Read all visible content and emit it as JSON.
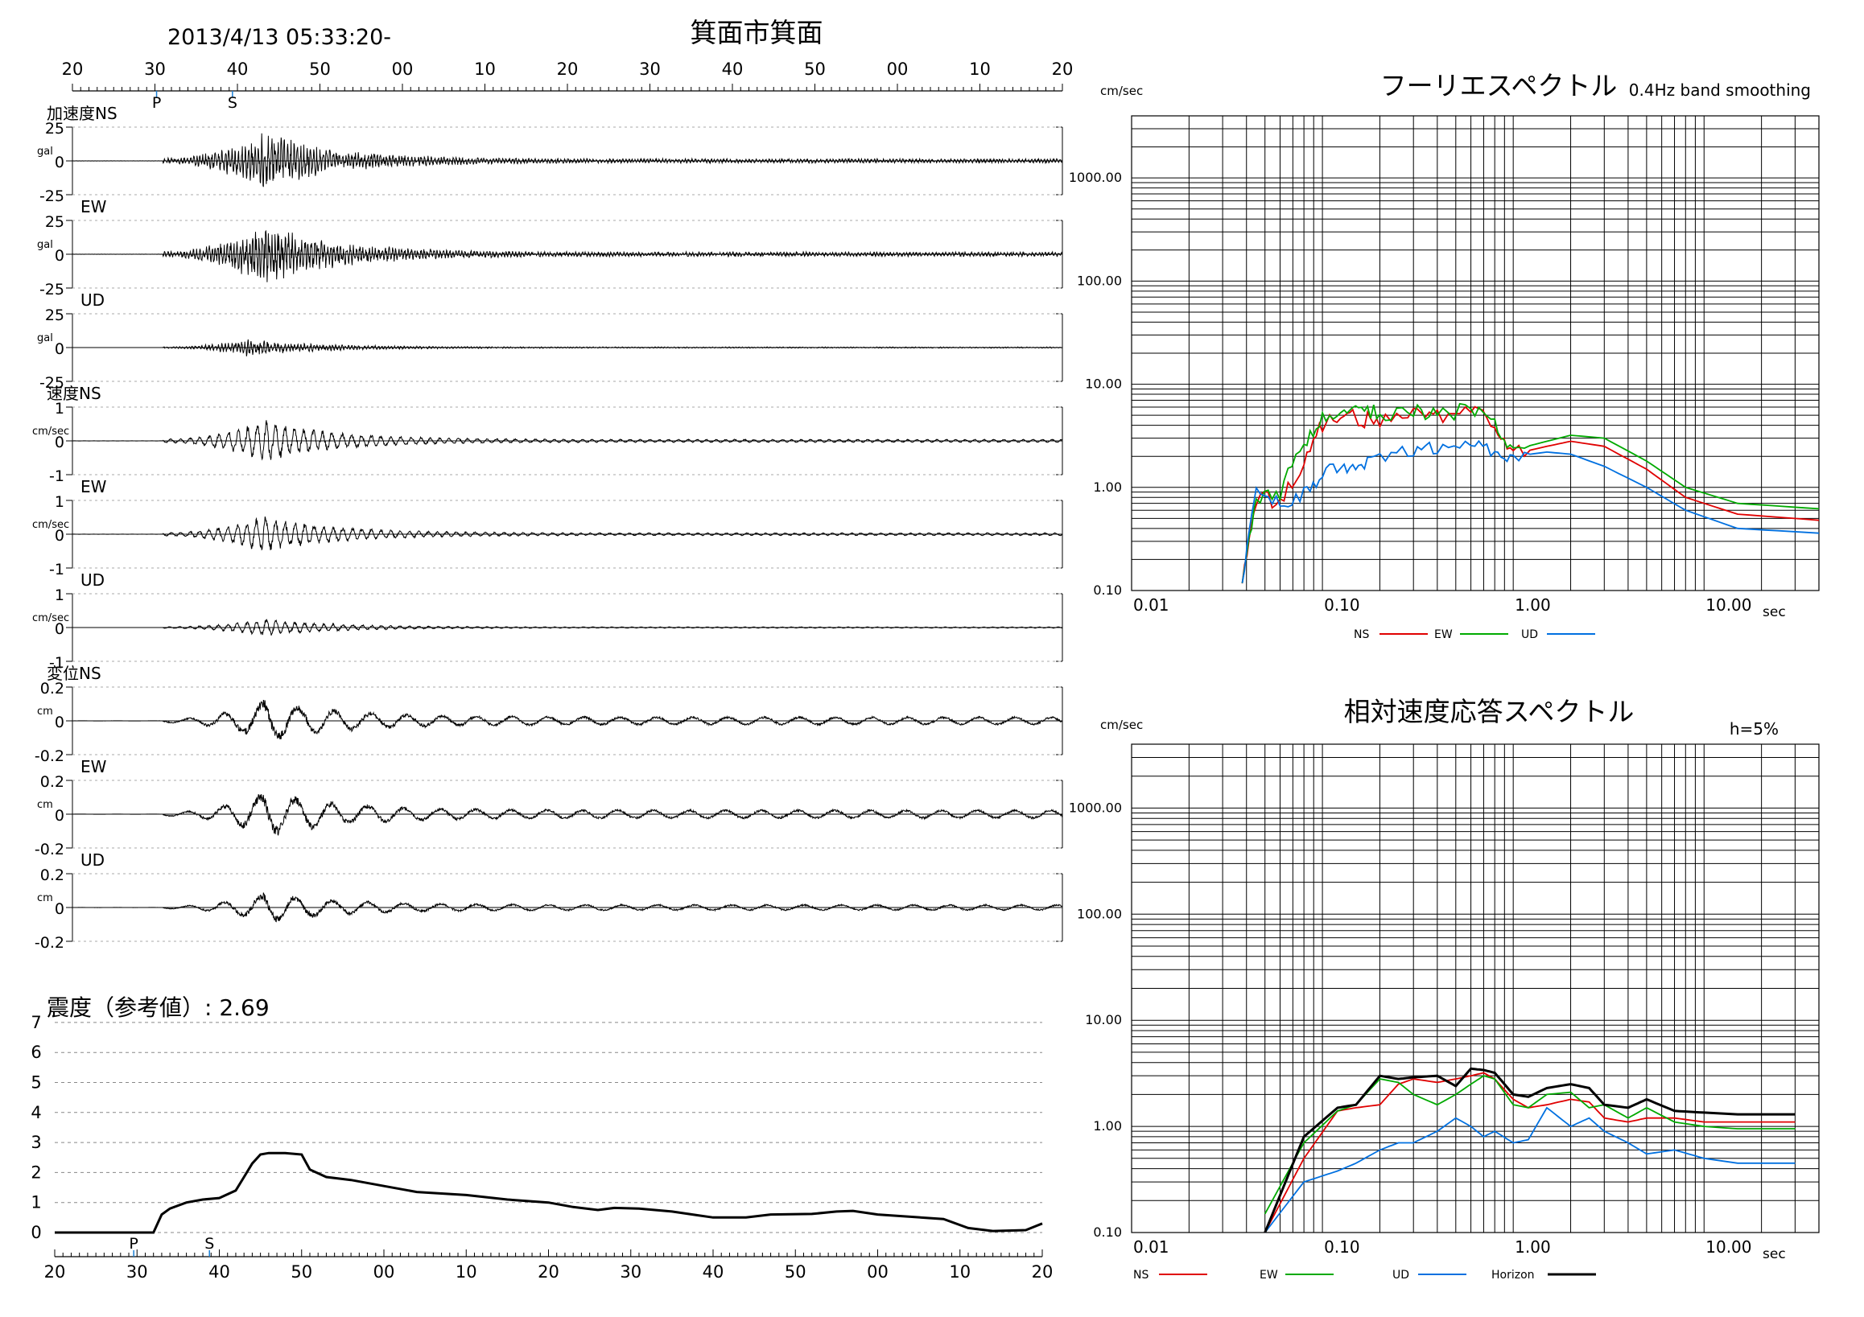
{
  "header": {
    "datetime": "2013/4/13 05:33:20-",
    "station": "箕面市箕面"
  },
  "colors": {
    "ns": "#e00000",
    "ew": "#00aa00",
    "ud": "#0070e0",
    "horizon": "#000000",
    "pick": "#1a7fd4"
  },
  "chart_data": [
    {
      "type": "line",
      "title": "箕面市箕面",
      "time_ticks": [
        "20",
        "30",
        "40",
        "50",
        "00",
        "10",
        "20",
        "30",
        "40",
        "50",
        "00",
        "10",
        "20"
      ],
      "picks": [
        "P",
        "S"
      ],
      "pick_times_s": [
        30.2,
        39.4
      ],
      "time_range_s": [
        20,
        140
      ],
      "panels": [
        {
          "group": "加速度",
          "comp": "NS",
          "label": "加速度NS",
          "unit": "gal",
          "ticks": [
            "25",
            "0",
            "-25"
          ],
          "ylim": [
            -25,
            25
          ],
          "onset": 31,
          "peak": 43,
          "amp": 0.85,
          "period": 0.4
        },
        {
          "group": "加速度",
          "comp": "EW",
          "label": "EW",
          "unit": "gal",
          "ticks": [
            "25",
            "0",
            "-25"
          ],
          "ylim": [
            -25,
            25
          ],
          "onset": 31,
          "peak": 43,
          "amp": 0.9,
          "period": 0.4
        },
        {
          "group": "加速度",
          "comp": "UD",
          "label": "UD",
          "unit": "gal",
          "ticks": [
            "25",
            "0",
            "-25"
          ],
          "ylim": [
            -25,
            25
          ],
          "onset": 31,
          "peak": 41,
          "amp": 0.25,
          "period": 0.4
        },
        {
          "group": "速度",
          "comp": "NS",
          "label": "速度NS",
          "unit": "cm/sec",
          "ticks": [
            "1",
            "0",
            "-1"
          ],
          "ylim": [
            -1,
            1
          ],
          "onset": 31,
          "peak": 43,
          "amp": 0.85,
          "period": 1.2
        },
        {
          "group": "速度",
          "comp": "EW",
          "label": "EW",
          "unit": "cm/sec",
          "ticks": [
            "1",
            "0",
            "-1"
          ],
          "ylim": [
            -1,
            1
          ],
          "onset": 31,
          "peak": 43,
          "amp": 0.75,
          "period": 1.2
        },
        {
          "group": "速度",
          "comp": "UD",
          "label": "UD",
          "unit": "cm/sec",
          "ticks": [
            "1",
            "0",
            "-1"
          ],
          "ylim": [
            -1,
            1
          ],
          "onset": 31,
          "peak": 43,
          "amp": 0.35,
          "period": 1.2
        },
        {
          "group": "変位",
          "comp": "NS",
          "label": "変位NS",
          "unit": "cm",
          "ticks": [
            "0.2",
            "0",
            "-0.2"
          ],
          "ylim": [
            -0.2,
            0.2
          ],
          "onset": 31,
          "peak": 43,
          "amp": 0.85,
          "period": 4.5
        },
        {
          "group": "変位",
          "comp": "EW",
          "label": "EW",
          "unit": "cm",
          "ticks": [
            "0.2",
            "0",
            "-0.2"
          ],
          "ylim": [
            -0.2,
            0.2
          ],
          "onset": 31,
          "peak": 43,
          "amp": 0.9,
          "period": 4.5
        },
        {
          "group": "変位",
          "comp": "UD",
          "label": "UD",
          "unit": "cm",
          "ticks": [
            "0.2",
            "0",
            "-0.2"
          ],
          "ylim": [
            -0.2,
            0.2
          ],
          "onset": 31,
          "peak": 43,
          "amp": 0.6,
          "period": 4.5
        }
      ]
    },
    {
      "type": "line",
      "title": "震度（参考値）: 2.69",
      "yticks": [
        "7",
        "6",
        "5",
        "4",
        "3",
        "2",
        "1",
        "0"
      ],
      "ylim": [
        0,
        7
      ],
      "x": [
        20,
        32,
        33,
        34,
        36,
        38,
        40,
        42,
        43,
        44,
        45,
        46,
        48,
        50,
        51,
        53,
        56,
        60,
        64,
        70,
        75,
        80,
        83,
        86,
        88,
        91,
        95,
        98,
        100,
        104,
        107,
        112,
        115,
        117,
        120,
        128,
        131,
        134,
        138,
        140
      ],
      "y": [
        0,
        0,
        0.6,
        0.8,
        1.0,
        1.1,
        1.15,
        1.4,
        1.85,
        2.3,
        2.6,
        2.65,
        2.65,
        2.6,
        2.1,
        1.85,
        1.75,
        1.55,
        1.35,
        1.25,
        1.1,
        1.0,
        0.85,
        0.75,
        0.82,
        0.8,
        0.7,
        0.58,
        0.5,
        0.5,
        0.6,
        0.62,
        0.7,
        0.72,
        0.6,
        0.45,
        0.15,
        0.05,
        0.08,
        0.3
      ]
    },
    {
      "type": "line",
      "title": "フーリエスペクトル",
      "note": "0.4Hz band smoothing",
      "ylabel": "cm/sec",
      "xlabel": "sec",
      "scale": "log-log",
      "xlim": [
        0.01,
        40
      ],
      "ylim": [
        0.1,
        4000
      ],
      "xticks": [
        "0.01",
        "0.10",
        "1.00",
        "10.00"
      ],
      "yticks": [
        "1000.00",
        "100.00",
        "10.00",
        "1.00",
        "0.10"
      ],
      "legend_labels": [
        "NS",
        "EW",
        "UD"
      ],
      "series": [
        {
          "name": "NS",
          "x": [
            0.038,
            0.045,
            0.06,
            0.08,
            0.1,
            0.13,
            0.16,
            0.2,
            0.3,
            0.4,
            0.6,
            0.8,
            1.0,
            1.5,
            2.0,
            3.0,
            5.0,
            8.0,
            15,
            40
          ],
          "y": [
            0.12,
            0.8,
            0.7,
            1.8,
            4.0,
            5.5,
            4.5,
            4.5,
            5.2,
            4.8,
            5.5,
            4.0,
            2.1,
            2.5,
            2.8,
            2.5,
            1.5,
            0.8,
            0.55,
            0.48
          ]
        },
        {
          "name": "EW",
          "x": [
            0.038,
            0.045,
            0.06,
            0.08,
            0.1,
            0.13,
            0.16,
            0.2,
            0.3,
            0.4,
            0.6,
            0.8,
            1.0,
            1.5,
            2.0,
            3.0,
            5.0,
            8.0,
            15,
            40
          ],
          "y": [
            0.12,
            0.8,
            0.9,
            2.6,
            4.8,
            5.8,
            5.5,
            5.2,
            5.8,
            5.0,
            5.8,
            4.0,
            2.3,
            2.8,
            3.2,
            3.0,
            1.8,
            1.0,
            0.7,
            0.62
          ]
        },
        {
          "name": "UD",
          "x": [
            0.038,
            0.045,
            0.06,
            0.08,
            0.1,
            0.13,
            0.16,
            0.2,
            0.3,
            0.4,
            0.6,
            0.8,
            1.0,
            1.5,
            2.0,
            3.0,
            5.0,
            8.0,
            15,
            40
          ],
          "y": [
            0.12,
            0.9,
            0.7,
            0.9,
            1.3,
            1.6,
            1.8,
            1.9,
            2.2,
            2.5,
            2.5,
            2.3,
            2.0,
            2.2,
            2.1,
            1.6,
            1.0,
            0.6,
            0.4,
            0.36
          ]
        }
      ]
    },
    {
      "type": "line",
      "title": "相対速度応答スペクトル",
      "note": "h=5%",
      "ylabel": "cm/sec",
      "xlabel": "sec",
      "scale": "log-log",
      "xlim": [
        0.01,
        40
      ],
      "ylim": [
        0.1,
        4000
      ],
      "xticks": [
        "0.01",
        "0.10",
        "1.00",
        "10.00"
      ],
      "yticks": [
        "1000.00",
        "100.00",
        "10.00",
        "1.00",
        "0.10"
      ],
      "legend_labels": [
        "NS",
        "EW",
        "UD",
        "Horizon"
      ],
      "series": [
        {
          "name": "NS",
          "x": [
            0.05,
            0.08,
            0.12,
            0.15,
            0.2,
            0.25,
            0.3,
            0.4,
            0.5,
            0.6,
            0.7,
            0.8,
            1.0,
            1.2,
            1.5,
            2.0,
            2.5,
            3.0,
            4.0,
            5.0,
            7.0,
            10,
            15,
            30
          ],
          "y": [
            0.1,
            0.5,
            1.4,
            1.5,
            1.6,
            2.5,
            2.8,
            2.6,
            2.8,
            3.0,
            3.2,
            2.8,
            1.8,
            1.5,
            1.6,
            1.8,
            1.7,
            1.2,
            1.1,
            1.2,
            1.2,
            1.1,
            1.1,
            1.1
          ]
        },
        {
          "name": "EW",
          "x": [
            0.05,
            0.08,
            0.12,
            0.15,
            0.2,
            0.25,
            0.3,
            0.4,
            0.5,
            0.6,
            0.7,
            0.8,
            1.0,
            1.2,
            1.5,
            2.0,
            2.5,
            3.0,
            4.0,
            5.0,
            7.0,
            10,
            15,
            30
          ],
          "y": [
            0.15,
            0.7,
            1.4,
            1.6,
            2.8,
            2.6,
            2.0,
            1.6,
            2.0,
            2.5,
            3.0,
            2.8,
            1.6,
            1.5,
            2.0,
            2.1,
            1.5,
            1.6,
            1.2,
            1.5,
            1.1,
            1.0,
            0.95,
            0.95
          ]
        },
        {
          "name": "UD",
          "x": [
            0.05,
            0.08,
            0.12,
            0.15,
            0.2,
            0.25,
            0.3,
            0.4,
            0.5,
            0.6,
            0.7,
            0.8,
            1.0,
            1.2,
            1.5,
            2.0,
            2.5,
            3.0,
            4.0,
            5.0,
            7.0,
            10,
            15,
            30
          ],
          "y": [
            0.1,
            0.3,
            0.38,
            0.45,
            0.6,
            0.7,
            0.7,
            0.9,
            1.2,
            1.0,
            0.8,
            0.9,
            0.7,
            0.75,
            1.5,
            1.0,
            1.2,
            0.9,
            0.7,
            0.55,
            0.6,
            0.5,
            0.45,
            0.45
          ]
        },
        {
          "name": "Horizon",
          "x": [
            0.05,
            0.08,
            0.12,
            0.15,
            0.2,
            0.25,
            0.3,
            0.4,
            0.5,
            0.6,
            0.7,
            0.8,
            1.0,
            1.2,
            1.5,
            2.0,
            2.5,
            3.0,
            4.0,
            5.0,
            7.0,
            10,
            15,
            30
          ],
          "y": [
            0.1,
            0.8,
            1.5,
            1.6,
            3.0,
            2.8,
            2.9,
            3.0,
            2.4,
            3.5,
            3.4,
            3.2,
            2.0,
            1.9,
            2.3,
            2.5,
            2.3,
            1.6,
            1.5,
            1.8,
            1.4,
            1.35,
            1.3,
            1.3
          ]
        }
      ]
    }
  ]
}
